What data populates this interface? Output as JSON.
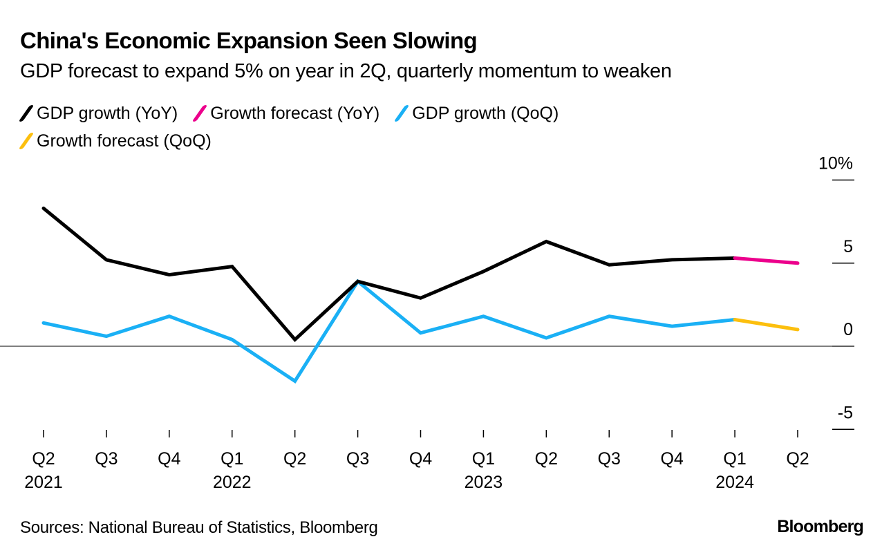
{
  "header": {
    "title": "China's Economic Expansion Seen Slowing",
    "subtitle": "GDP forecast to expand 5% on year in 2Q, quarterly momentum to weaken"
  },
  "legend": [
    {
      "label": "GDP growth (YoY)",
      "color": "#000000"
    },
    {
      "label": "Growth forecast (YoY)",
      "color": "#ec008c"
    },
    {
      "label": "GDP growth (QoQ)",
      "color": "#1ab0f5"
    },
    {
      "label": "Growth forecast (QoQ)",
      "color": "#fcbf0e"
    }
  ],
  "footer": {
    "source": "Sources: National Bureau of Statistics, Bloomberg",
    "brand": "Bloomberg"
  },
  "chart_data": {
    "type": "line",
    "title": "China's Economic Expansion Seen Slowing",
    "subtitle": "GDP forecast to expand 5% on year in 2Q, quarterly momentum to weaken",
    "xlabel": "",
    "ylabel": "",
    "categories": [
      "Q2 2021",
      "Q3 2021",
      "Q4 2021",
      "Q1 2022",
      "Q2 2022",
      "Q3 2022",
      "Q4 2022",
      "Q1 2023",
      "Q2 2023",
      "Q3 2023",
      "Q4 2023",
      "Q1 2024",
      "Q2 2024"
    ],
    "x_tick_labels": [
      {
        "quarter": "Q2",
        "year": "2021"
      },
      {
        "quarter": "Q3",
        "year": ""
      },
      {
        "quarter": "Q4",
        "year": ""
      },
      {
        "quarter": "Q1",
        "year": "2022"
      },
      {
        "quarter": "Q2",
        "year": ""
      },
      {
        "quarter": "Q3",
        "year": ""
      },
      {
        "quarter": "Q4",
        "year": ""
      },
      {
        "quarter": "Q1",
        "year": "2023"
      },
      {
        "quarter": "Q2",
        "year": ""
      },
      {
        "quarter": "Q3",
        "year": ""
      },
      {
        "quarter": "Q4",
        "year": ""
      },
      {
        "quarter": "Q1",
        "year": "2024"
      },
      {
        "quarter": "Q2",
        "year": ""
      }
    ],
    "y_ticks": [
      {
        "value": 10,
        "label": "10%"
      },
      {
        "value": 5,
        "label": "5"
      },
      {
        "value": 0,
        "label": "0"
      },
      {
        "value": -5,
        "label": "-5"
      }
    ],
    "ylim": [
      -5,
      10
    ],
    "grid": false,
    "zero_line": true,
    "legend_position": "top-left",
    "series": [
      {
        "name": "GDP growth (YoY)",
        "color": "#000000",
        "values": [
          8.3,
          5.2,
          4.3,
          4.8,
          0.4,
          3.9,
          2.9,
          4.5,
          6.3,
          4.9,
          5.2,
          5.3,
          null
        ]
      },
      {
        "name": "Growth forecast (YoY)",
        "color": "#ec008c",
        "values": [
          null,
          null,
          null,
          null,
          null,
          null,
          null,
          null,
          null,
          null,
          null,
          5.3,
          5.0
        ]
      },
      {
        "name": "GDP growth (QoQ)",
        "color": "#1ab0f5",
        "values": [
          1.4,
          0.6,
          1.8,
          0.4,
          -2.1,
          3.9,
          0.8,
          1.8,
          0.5,
          1.8,
          1.2,
          1.6,
          null
        ]
      },
      {
        "name": "Growth forecast (QoQ)",
        "color": "#fcbf0e",
        "values": [
          null,
          null,
          null,
          null,
          null,
          null,
          null,
          null,
          null,
          null,
          null,
          1.6,
          1.0
        ]
      }
    ]
  }
}
